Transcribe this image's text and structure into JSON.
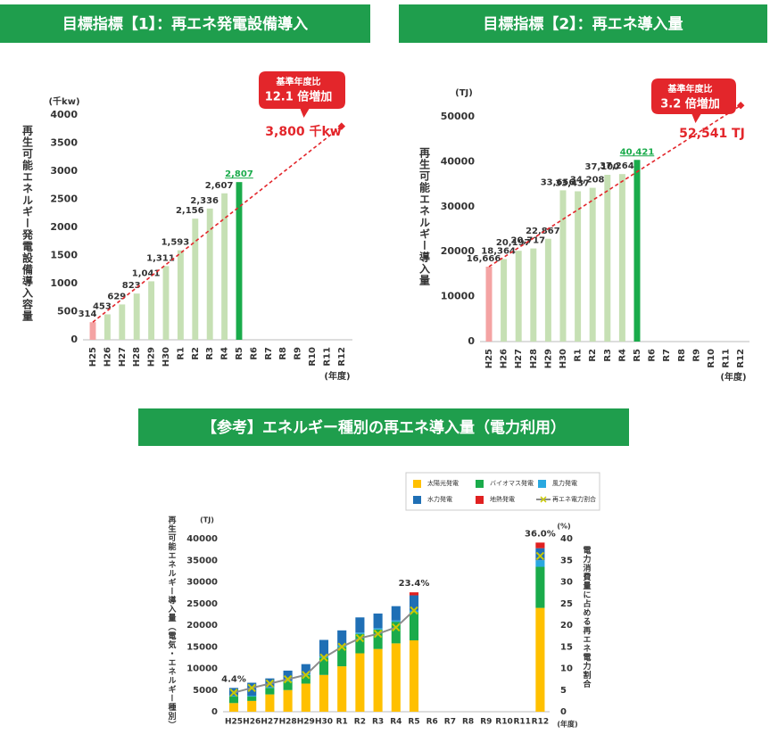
{
  "chart_data": [
    {
      "type": "bar",
      "title": "目標指標【1】：再エネ発電設備導入",
      "y_label": "再生可能エネルギー発電設備導入容量",
      "y_unit": "(千kw)",
      "x_unit": "(年度)",
      "categories": [
        "H25",
        "H26",
        "H27",
        "H28",
        "H29",
        "H30",
        "R1",
        "R2",
        "R3",
        "R4",
        "R5",
        "R6",
        "R7",
        "R8",
        "R9",
        "R10",
        "R11",
        "R12"
      ],
      "values": [
        314,
        453,
        629,
        823,
        1041,
        1311,
        1593,
        2156,
        2336,
        2607,
        2807,
        null,
        null,
        null,
        null,
        null,
        null,
        null
      ],
      "value_labels": [
        "314",
        "453",
        "629",
        "823",
        "1,041",
        "1,311",
        "1,593",
        "2,156",
        "2,336",
        "2,607",
        "2,807",
        null,
        null,
        null,
        null,
        null,
        null,
        null
      ],
      "color": "#c6e0b4",
      "base_color": "#f4a3a3",
      "latest_color": "#1aab4b",
      "ylim": [
        0,
        4000
      ],
      "yticks": [
        0,
        500,
        1000,
        1500,
        2000,
        2500,
        3000,
        3500,
        4000
      ],
      "grid": false,
      "target": {
        "value": 3800,
        "label": "3,800 千kw",
        "color": "#e3262b"
      },
      "callout": [
        "基準年度比",
        "12.1 倍増加"
      ]
    },
    {
      "type": "bar",
      "title": "目標指標【2】：再エネ導入量",
      "y_label": "再生可能エネルギー導入量",
      "y_unit": "(TJ)",
      "x_unit": "(年度)",
      "categories": [
        "H25",
        "H26",
        "H27",
        "H28",
        "H29",
        "H30",
        "R1",
        "R2",
        "R3",
        "R4",
        "R5",
        "R6",
        "R7",
        "R8",
        "R9",
        "R10",
        "R11",
        "R12"
      ],
      "values": [
        16666,
        18364,
        20197,
        20717,
        22867,
        33656,
        33437,
        34208,
        37100,
        37264,
        40421,
        null,
        null,
        null,
        null,
        null,
        null,
        null
      ],
      "value_labels": [
        "16,666",
        "18,364",
        "20,197",
        "20,717",
        "22,867",
        "33,656",
        "33,437",
        "34,208",
        "37,100",
        "37,264",
        "40,421",
        null,
        null,
        null,
        null,
        null,
        null,
        null
      ],
      "color": "#c6e0b4",
      "base_color": "#f4a3a3",
      "latest_color": "#1aab4b",
      "ylim": [
        0,
        50000
      ],
      "yticks": [
        0,
        10000,
        20000,
        30000,
        40000,
        50000
      ],
      "grid": false,
      "target": {
        "value": 52541,
        "label": "52,541 TJ",
        "color": "#e3262b"
      },
      "callout": [
        "基準年度比",
        "3.2 倍増加"
      ]
    },
    {
      "type": "stacked_bar",
      "title": "【参考】エネルギー種別の再エネ導入量（電力利用）",
      "y_label": "再生可能エネルギー導入量（電気・エネルギー種別）",
      "y_unit": "(TJ)",
      "y2_label": "電力消費量に占める再エネ電力割合",
      "y2_unit": "(%)",
      "x_unit": "(年度)",
      "categories": [
        "H25",
        "H26",
        "H27",
        "H28",
        "H29",
        "H30",
        "R1",
        "R2",
        "R3",
        "R4",
        "R5",
        "R6",
        "R7",
        "R8",
        "R9",
        "R10",
        "R11",
        "R12"
      ],
      "series": [
        {
          "name": "太陽光発電",
          "color": "#ffc000",
          "values": [
            2000,
            2500,
            4000,
            5000,
            6500,
            8500,
            10500,
            13500,
            14500,
            15800,
            16500,
            null,
            null,
            null,
            null,
            null,
            null,
            24000
          ]
        },
        {
          "name": "バイオマス発電",
          "color": "#1aab4b",
          "values": [
            1500,
            1000,
            1500,
            2000,
            2000,
            4000,
            4500,
            4500,
            4500,
            5000,
            6500,
            null,
            null,
            null,
            null,
            null,
            null,
            9500
          ]
        },
        {
          "name": "風力発電",
          "color": "#29a8e0",
          "values": [
            200,
            200,
            200,
            200,
            200,
            300,
            300,
            300,
            300,
            300,
            400,
            null,
            null,
            null,
            null,
            null,
            null,
            1500
          ]
        },
        {
          "name": "水力発電",
          "color": "#1f6fb5",
          "values": [
            1800,
            3000,
            2000,
            2300,
            2300,
            3800,
            3500,
            3500,
            3400,
            3300,
            3500,
            null,
            null,
            null,
            null,
            null,
            null,
            2800
          ]
        },
        {
          "name": "地熱発電",
          "color": "#e02020",
          "values": [
            0,
            0,
            0,
            0,
            0,
            0,
            0,
            0,
            0,
            0,
            700,
            null,
            null,
            null,
            null,
            null,
            null,
            1300
          ]
        },
        {
          "name": "再エネ電力割合",
          "color": "#8c8c8c",
          "marker_color": "#c9c900",
          "axis": "y2",
          "values": [
            4.4,
            5.5,
            6.5,
            7.5,
            8.5,
            12.5,
            15,
            17,
            18,
            19.5,
            23.4,
            null,
            null,
            null,
            null,
            null,
            null,
            36
          ],
          "value_labels": [
            "4.4%",
            null,
            null,
            null,
            null,
            null,
            null,
            null,
            null,
            null,
            "23.4%",
            null,
            null,
            null,
            null,
            null,
            null,
            "36.0%"
          ]
        }
      ],
      "ylim": [
        0,
        40000
      ],
      "yticks": [
        0,
        5000,
        10000,
        15000,
        20000,
        25000,
        30000,
        35000,
        40000
      ],
      "y2lim": [
        0,
        40
      ],
      "y2ticks": [
        0,
        5,
        10,
        15,
        20,
        25,
        30,
        35,
        40
      ],
      "grid": false
    }
  ]
}
